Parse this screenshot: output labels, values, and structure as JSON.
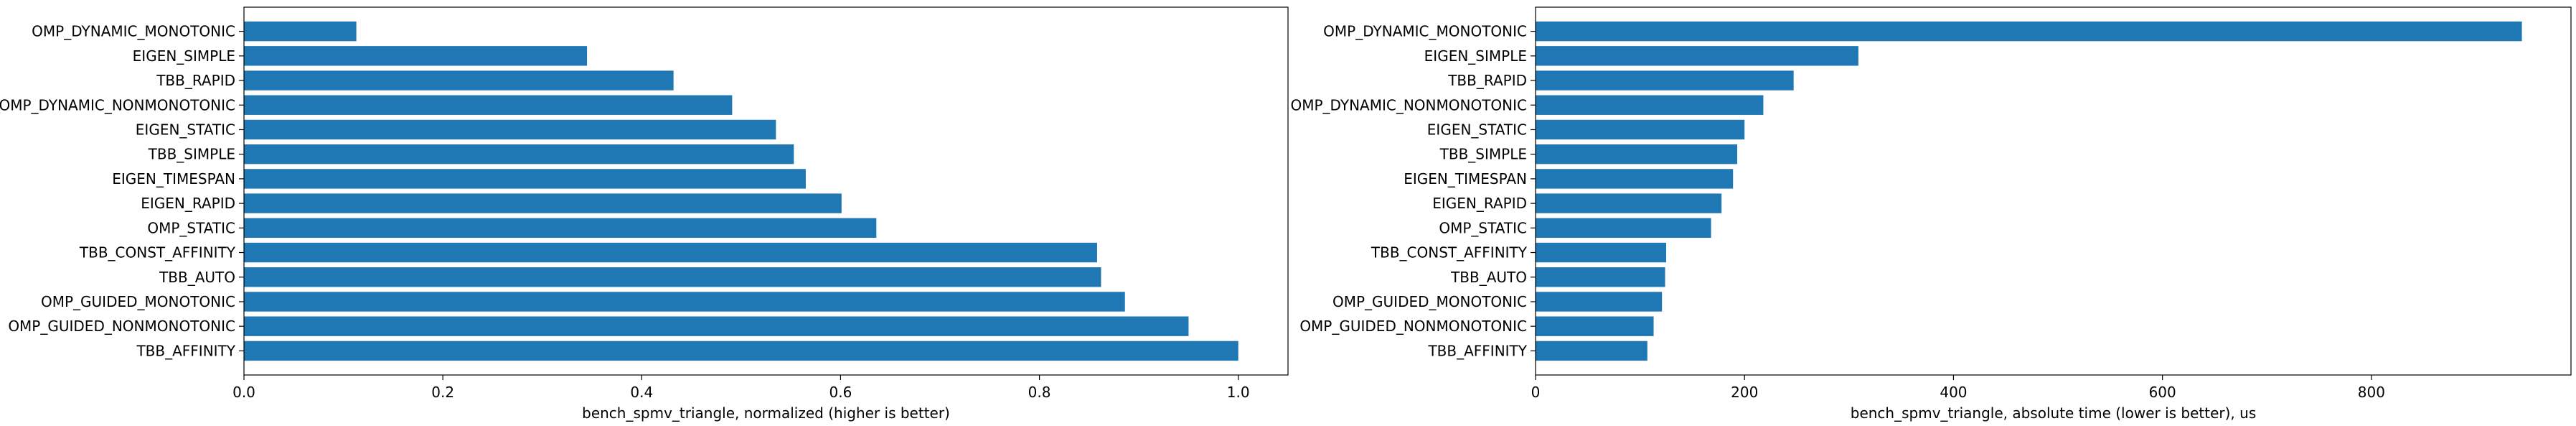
{
  "chart_data": [
    {
      "type": "bar",
      "orientation": "horizontal",
      "categories": [
        "OMP_DYNAMIC_MONOTONIC",
        "EIGEN_SIMPLE",
        "TBB_RAPID",
        "OMP_DYNAMIC_NONMONOTONIC",
        "EIGEN_STATIC",
        "TBB_SIMPLE",
        "EIGEN_TIMESPAN",
        "EIGEN_RAPID",
        "OMP_STATIC",
        "TBB_CONST_AFFINITY",
        "TBB_AUTO",
        "OMP_GUIDED_MONOTONIC",
        "OMP_GUIDED_NONMONOTONIC",
        "TBB_AFFINITY"
      ],
      "values": [
        0.113,
        0.345,
        0.432,
        0.491,
        0.535,
        0.553,
        0.565,
        0.601,
        0.636,
        0.858,
        0.862,
        0.886,
        0.95,
        1.0
      ],
      "xlabel": "bench_spmv_triangle, normalized (higher is better)",
      "ylabel": "",
      "xlim": [
        0,
        1.05
      ],
      "xticks": [
        0.0,
        0.2,
        0.4,
        0.6,
        0.8,
        1.0
      ],
      "xtick_labels": [
        "0.0",
        "0.2",
        "0.4",
        "0.6",
        "0.8",
        "1.0"
      ],
      "grid": false,
      "bar_color": "#1f77b4"
    },
    {
      "type": "bar",
      "orientation": "horizontal",
      "categories": [
        "OMP_DYNAMIC_MONOTONIC",
        "EIGEN_SIMPLE",
        "TBB_RAPID",
        "OMP_DYNAMIC_NONMONOTONIC",
        "EIGEN_STATIC",
        "TBB_SIMPLE",
        "EIGEN_TIMESPAN",
        "EIGEN_RAPID",
        "OMP_STATIC",
        "TBB_CONST_AFFINITY",
        "TBB_AUTO",
        "OMP_GUIDED_MONOTONIC",
        "OMP_GUIDED_NONMONOTONIC",
        "TBB_AFFINITY"
      ],
      "values": [
        944,
        309,
        247,
        218,
        200,
        193,
        189,
        178,
        168,
        125,
        124,
        121,
        113,
        107
      ],
      "xlabel": "bench_spmv_triangle, absolute time (lower is better), us",
      "ylabel": "",
      "xlim": [
        0,
        991
      ],
      "xticks": [
        0,
        200,
        400,
        600,
        800
      ],
      "xtick_labels": [
        "0",
        "200",
        "400",
        "600",
        "800"
      ],
      "grid": false,
      "bar_color": "#1f77b4"
    }
  ]
}
